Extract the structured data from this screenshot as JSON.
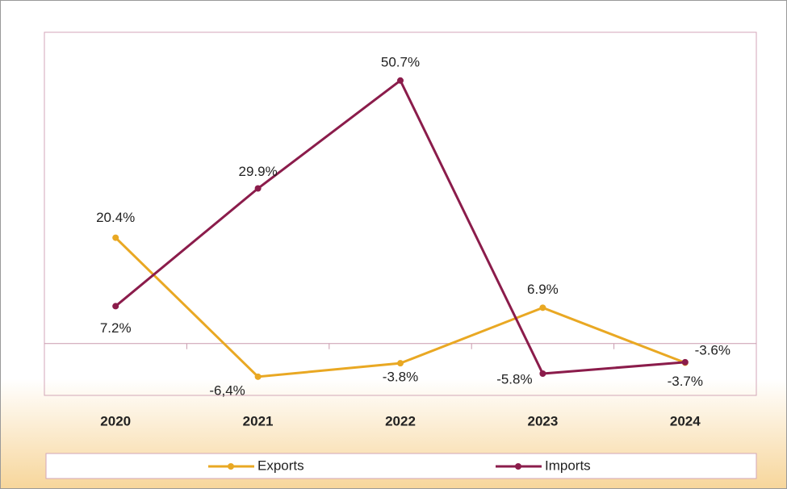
{
  "chart_data": {
    "type": "line",
    "categories": [
      "2020",
      "2021",
      "2022",
      "2023",
      "2024"
    ],
    "series": [
      {
        "name": "Exports",
        "color": "#e9a823",
        "values": [
          20.4,
          -6.4,
          -3.8,
          6.9,
          -3.7
        ],
        "value_labels": [
          "20.4%",
          "-6,4%",
          "-3.8%",
          "6.9%",
          "-3.7%"
        ]
      },
      {
        "name": "Imports",
        "color": "#8b1c4b",
        "values": [
          7.2,
          29.9,
          50.7,
          -5.8,
          -3.6
        ],
        "value_labels": [
          "7.2%",
          "29.9%",
          "50.7%",
          "-5.8%",
          "-3.6%"
        ]
      }
    ],
    "ylim": [
      -10,
      60
    ],
    "legend": "bottom"
  }
}
